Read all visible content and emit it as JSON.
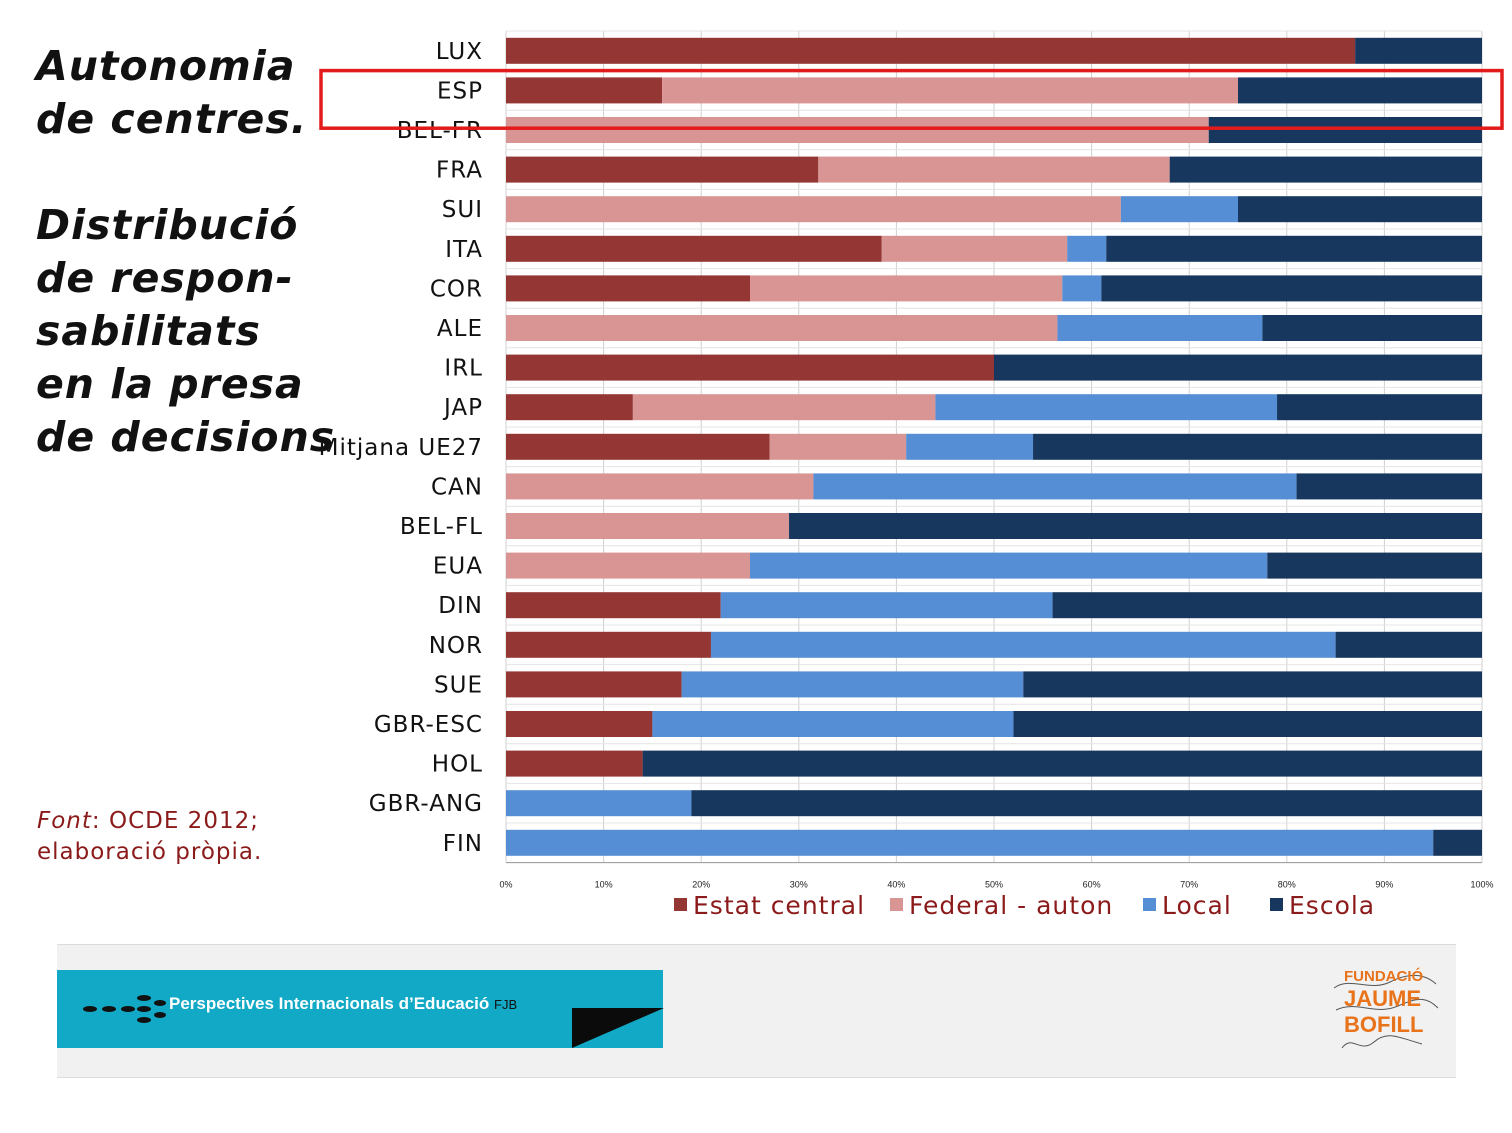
{
  "heading": {
    "line1": "Autonomia",
    "line2": "de centres.",
    "line3": "Distribució",
    "line4": "de respon-",
    "line5": "sabilitats",
    "line6": "en la presa",
    "line7": "de decisions"
  },
  "source": {
    "label": "Font",
    "text": ": OCDE 2012;",
    "text2": "elaboració pròpia."
  },
  "footer": {
    "banner_text": "Perspectives Internacionals d’Educació",
    "banner_suffix": "FJB",
    "logo_line1": "FUNDACIÓ",
    "logo_line2": "JAUME",
    "logo_line3": "BOFILL"
  },
  "highlight": {
    "category": "ESP",
    "color": "#e31b1b"
  },
  "chart_data": {
    "type": "bar",
    "orientation": "horizontal",
    "stacked": "percent",
    "categories": [
      "LUX",
      "ESP",
      "BEL-FR",
      "FRA",
      "SUI",
      "ITA",
      "COR",
      "ALE",
      "IRL",
      "JAP",
      "Mitjana UE27",
      "CAN",
      "BEL-FL",
      "EUA",
      "DIN",
      "NOR",
      "SUE",
      "GBR-ESC",
      "HOL",
      "GBR-ANG",
      "FIN"
    ],
    "series": [
      {
        "name": "Estat central",
        "color": "#943634",
        "values": [
          87,
          16,
          0,
          32,
          0,
          38.5,
          25,
          0,
          50,
          13,
          27,
          0,
          0,
          0,
          22,
          21,
          18,
          15,
          14,
          0,
          0
        ]
      },
      {
        "name": "Federal - auton",
        "color": "#d99594",
        "values": [
          0,
          59,
          72,
          36,
          63,
          19,
          32,
          56.5,
          0,
          31,
          14,
          31.5,
          29,
          25,
          0,
          0,
          0,
          0,
          0,
          0,
          0
        ]
      },
      {
        "name": "Local",
        "color": "#558ed5",
        "values": [
          0,
          0,
          0,
          0,
          12,
          4,
          4,
          21,
          0,
          35,
          13,
          49.5,
          0,
          53,
          34,
          64,
          35,
          37,
          0,
          19,
          95
        ]
      },
      {
        "name": "Escola",
        "color": "#17375e",
        "values": [
          13,
          25,
          28,
          32,
          25,
          38.5,
          39,
          22.5,
          50,
          21,
          46,
          19,
          71,
          22,
          44,
          15,
          47,
          48,
          86,
          81,
          5
        ]
      }
    ],
    "xlim": [
      0,
      100
    ],
    "x_ticks": [
      "0%",
      "10%",
      "20%",
      "30%",
      "40%",
      "50%",
      "60%",
      "70%",
      "80%",
      "90%",
      "100%"
    ],
    "grid": true,
    "legend_position": "bottom"
  }
}
